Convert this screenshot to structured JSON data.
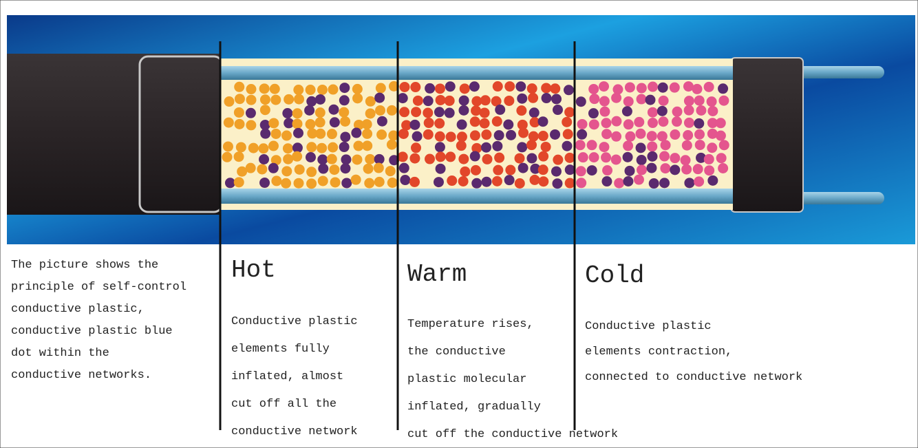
{
  "intro": {
    "lines": [
      "The picture shows the",
      "principle of self-control",
      "conductive plastic,",
      "conductive plastic blue",
      "dot within the",
      "conductive networks."
    ]
  },
  "sections": [
    {
      "heading": "Hot",
      "lines": [
        "Conductive plastic",
        "elements fully",
        "inflated, almost",
        "cut off all the",
        "conductive network"
      ]
    },
    {
      "heading": "Warm",
      "lines": [
        "Temperature rises,",
        "the conductive",
        "plastic molecular",
        "inflated, gradually",
        "cut off the conductive network"
      ]
    },
    {
      "heading": "Cold",
      "lines": [
        "Conductive plastic",
        "elements contraction,",
        "connected to conductive network"
      ]
    }
  ]
}
